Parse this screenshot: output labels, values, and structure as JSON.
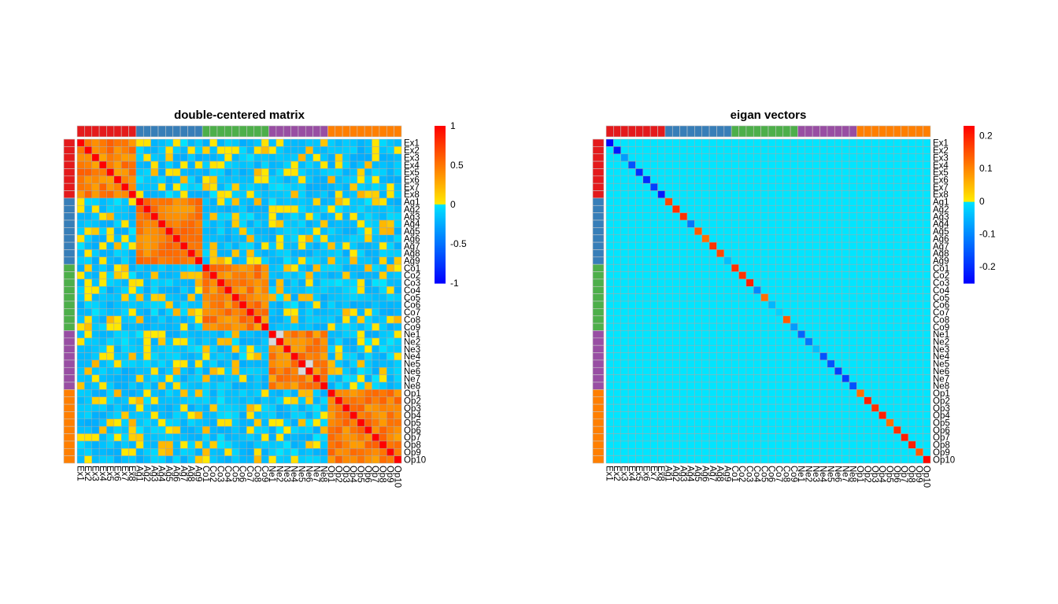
{
  "chart_data": [
    {
      "type": "heatmap",
      "title": "double-centered matrix",
      "labels": [
        "Ex1",
        "Ex2",
        "Ex3",
        "Ex4",
        "Ex5",
        "Ex6",
        "Ex7",
        "Ex8",
        "Ag1",
        "Ag2",
        "Ag3",
        "Ag4",
        "Ag5",
        "Ag6",
        "Ag7",
        "Ag8",
        "Ag9",
        "Co1",
        "Co2",
        "Co3",
        "Co4",
        "Co5",
        "Co6",
        "Co7",
        "Co8",
        "Co9",
        "Ne1",
        "Ne2",
        "Ne3",
        "Ne4",
        "Ne5",
        "Ne6",
        "Ne7",
        "Ne8",
        "Op1",
        "Op2",
        "Op3",
        "Op4",
        "Op5",
        "Op6",
        "Op7",
        "Op8",
        "Op9",
        "Op10"
      ],
      "groups": [
        {
          "name": "Ex",
          "count": 8,
          "color": "#E41A1C"
        },
        {
          "name": "Ag",
          "count": 9,
          "color": "#377EB8"
        },
        {
          "name": "Co",
          "count": 9,
          "color": "#4DAF4A"
        },
        {
          "name": "Ne",
          "count": 8,
          "color": "#984EA3"
        },
        {
          "name": "Op",
          "count": 10,
          "color": "#FF7F00"
        }
      ],
      "value_range": [
        -1,
        1
      ],
      "colorbar_ticks": [
        "1",
        "0.5",
        "0",
        "-0.5",
        "-1"
      ],
      "colorbar_tick_values": [
        1,
        0.5,
        0,
        -0.5,
        -1
      ],
      "palette": [
        "#0000FF",
        "#00E5FF",
        "#FFEB00",
        "#FF0000"
      ],
      "values_desc": "diagonal 1.0; within-group ~0.3-0.6; between-group ~-0.25 to 0.2"
    },
    {
      "type": "heatmap",
      "title": "eigan vectors",
      "labels": [
        "Ex1",
        "Ex2",
        "Ex3",
        "Ex4",
        "Ex5",
        "Ex6",
        "Ex7",
        "Ex8",
        "Ag1",
        "Ag2",
        "Ag3",
        "Ag4",
        "Ag5",
        "Ag6",
        "Ag7",
        "Ag8",
        "Ag9",
        "Co1",
        "Co2",
        "Co3",
        "Co4",
        "Co5",
        "Co6",
        "Co7",
        "Co8",
        "Co9",
        "Ne1",
        "Ne2",
        "Ne3",
        "Ne4",
        "Ne5",
        "Ne6",
        "Ne7",
        "Ne8",
        "Op1",
        "Op2",
        "Op3",
        "Op4",
        "Op5",
        "Op6",
        "Op7",
        "Op8",
        "Op9",
        "Op10"
      ],
      "groups": [
        {
          "name": "Ex",
          "count": 8,
          "color": "#E41A1C"
        },
        {
          "name": "Ag",
          "count": 9,
          "color": "#377EB8"
        },
        {
          "name": "Co",
          "count": 9,
          "color": "#4DAF4A"
        },
        {
          "name": "Ne",
          "count": 8,
          "color": "#984EA3"
        },
        {
          "name": "Op",
          "count": 10,
          "color": "#FF7F00"
        }
      ],
      "value_range": [
        -0.25,
        0.23
      ],
      "colorbar_ticks": [
        "0.2",
        "0.1",
        "0",
        "-0.1",
        "-0.2"
      ],
      "colorbar_tick_values": [
        0.2,
        0.1,
        0,
        -0.1,
        -0.2
      ],
      "palette": [
        "#0000FF",
        "#00E5FF",
        "#FFEB00",
        "#FF0000"
      ],
      "off_diagonal_value": 0,
      "diagonal": [
        -0.24,
        -0.22,
        -0.08,
        -0.16,
        -0.2,
        -0.2,
        -0.18,
        -0.22,
        0.16,
        0.18,
        0.18,
        -0.12,
        0.14,
        0.12,
        0.18,
        0.16,
        -0.04,
        0.18,
        0.18,
        0.2,
        -0.1,
        0.12,
        -0.05,
        -0.02,
        0.14,
        -0.08,
        -0.14,
        -0.12,
        -0.04,
        -0.16,
        -0.16,
        -0.18,
        -0.18,
        -0.16,
        0.12,
        0.2,
        0.18,
        0.2,
        0.12,
        0.18,
        0.2,
        0.2,
        0.14,
        0.22
      ]
    }
  ]
}
